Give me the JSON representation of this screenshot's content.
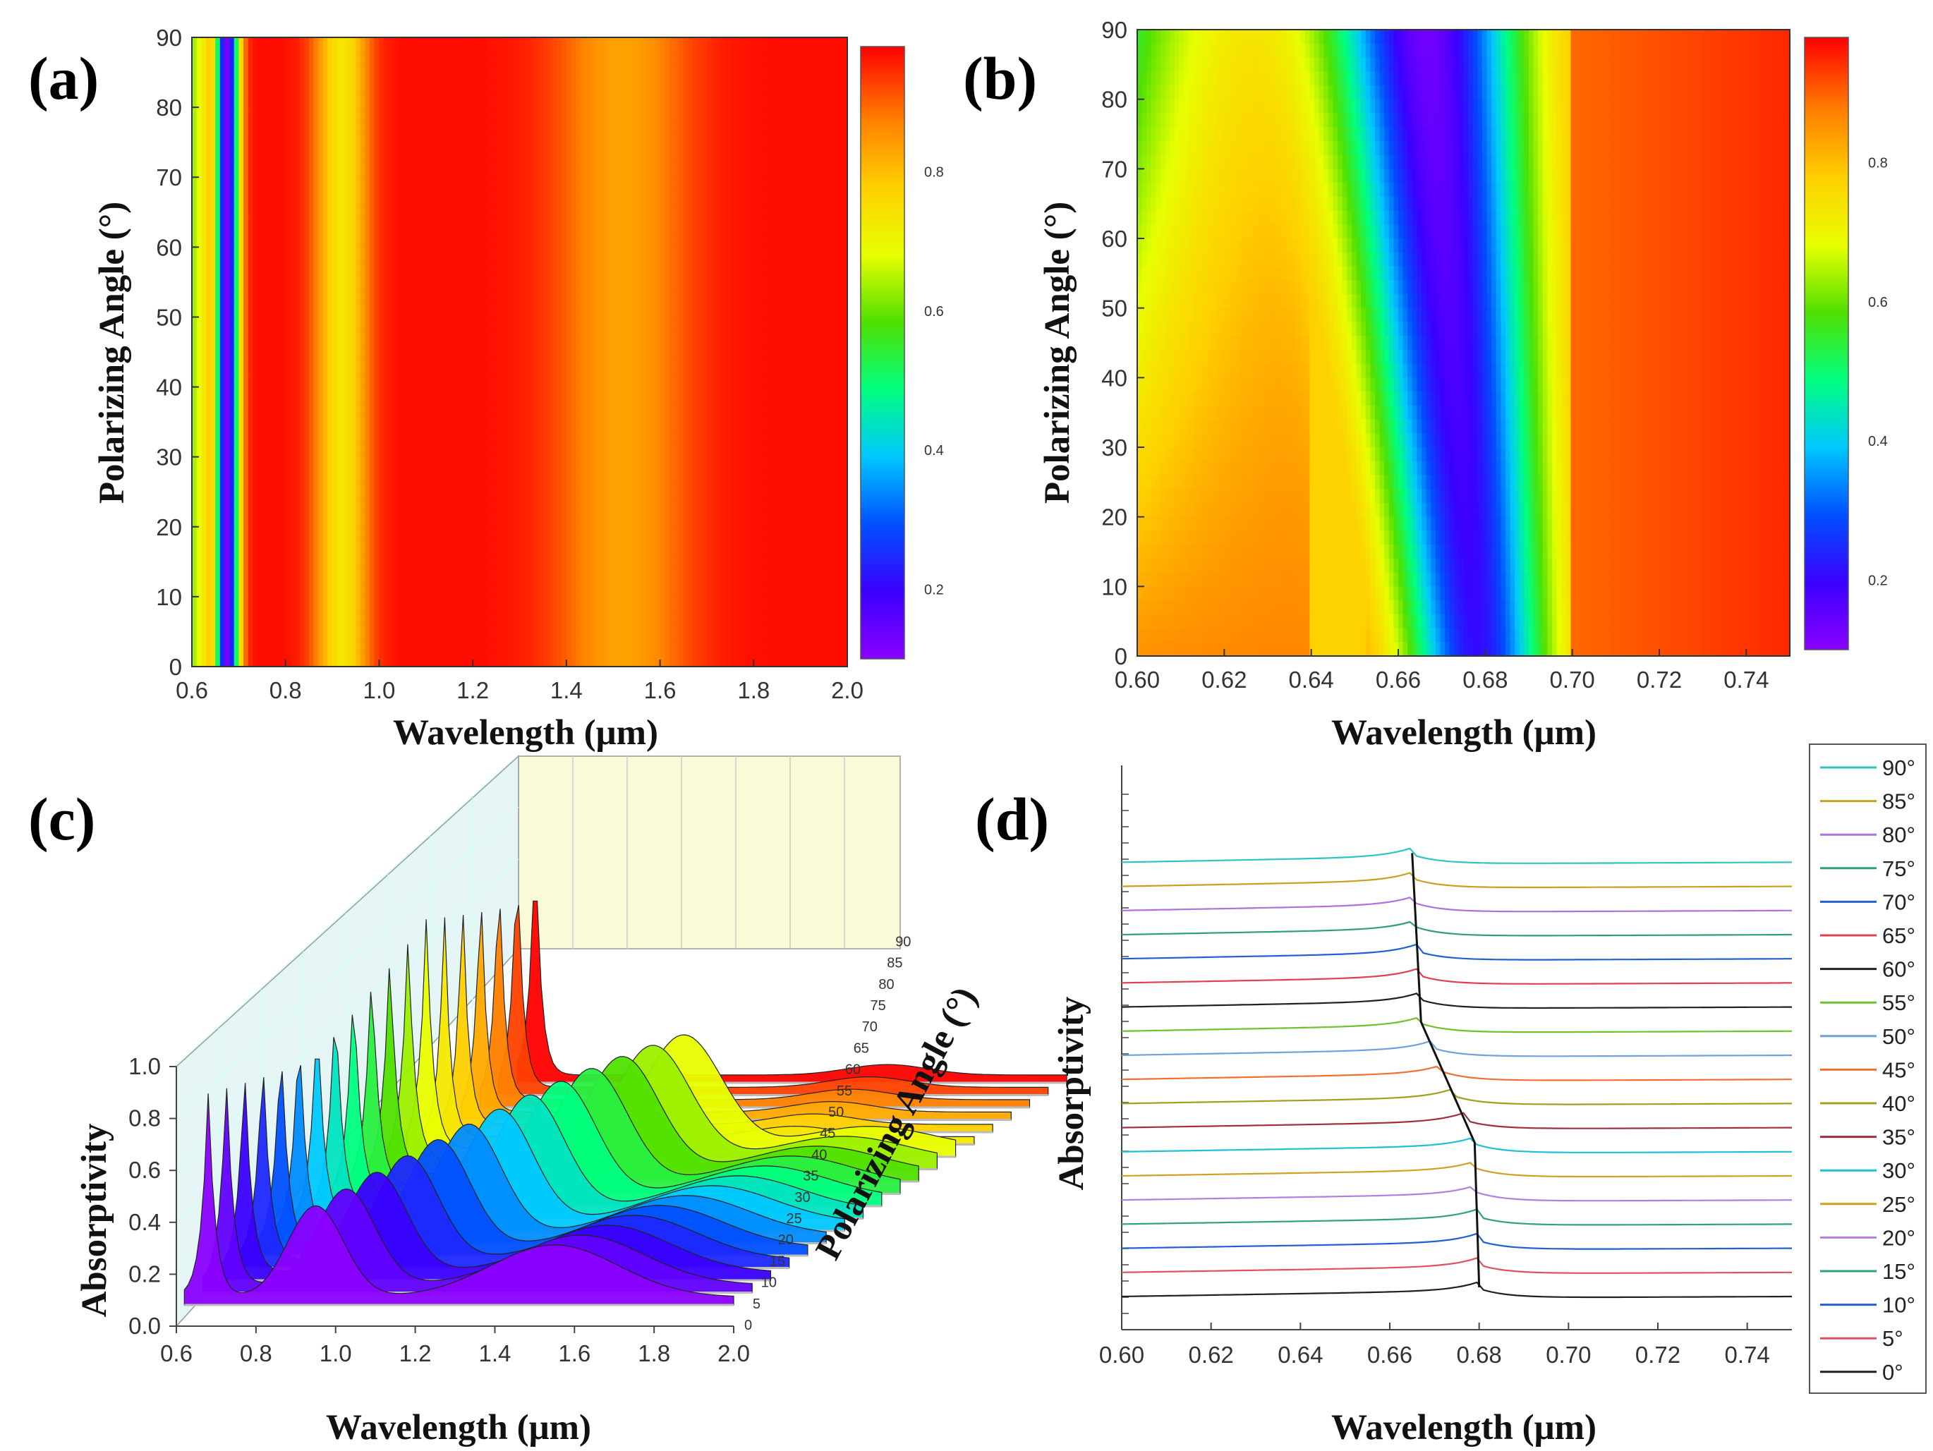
{
  "colormap": [
    "#8a00ff",
    "#3a00ff",
    "#0050ff",
    "#00c8ff",
    "#00ff80",
    "#50e000",
    "#e8ff00",
    "#ffd000",
    "#ff8000",
    "#ff0000"
  ],
  "chart_data": [
    {
      "panel": "(a)",
      "type": "heatmap",
      "xlabel": "Wavelength (μm)",
      "ylabel": "Polarizing Angle (°)",
      "xlim": [
        0.6,
        2.0
      ],
      "ylim": [
        0,
        90
      ],
      "xticks": [
        "0.6",
        "0.8",
        "1.0",
        "1.2",
        "1.4",
        "1.6",
        "1.8",
        "2.0"
      ],
      "yticks": [
        "0",
        "10",
        "20",
        "30",
        "40",
        "50",
        "60",
        "70",
        "80",
        "90"
      ],
      "colorbar_ticks": [
        "0.2",
        "0.4",
        "0.6",
        "0.8"
      ],
      "colorbar_range": [
        0.1,
        0.98
      ],
      "features": [
        {
          "type": "dip",
          "center_um": 0.675,
          "width_um": 0.018,
          "min_value": 0.12,
          "slope_um_per_deg": 0.0
        },
        {
          "type": "dip",
          "center_um": 0.92,
          "width_um": 0.04,
          "min_value": 0.74
        },
        {
          "type": "dip",
          "center_um": 1.52,
          "width_um": 0.1,
          "min_value": 0.84
        }
      ],
      "background_value": 0.97
    },
    {
      "panel": "(b)",
      "type": "heatmap",
      "xlabel": "Wavelength (μm)",
      "ylabel": "Polarizing Angle (°)",
      "xlim": [
        0.6,
        0.75
      ],
      "ylim": [
        0,
        90
      ],
      "xticks": [
        "0.60",
        "0.62",
        "0.64",
        "0.66",
        "0.68",
        "0.70",
        "0.72",
        "0.74"
      ],
      "yticks": [
        "0",
        "10",
        "20",
        "30",
        "40",
        "50",
        "60",
        "70",
        "80",
        "90"
      ],
      "colorbar_ticks": [
        "0.2",
        "0.4",
        "0.6",
        "0.8"
      ],
      "colorbar_range": [
        0.1,
        0.98
      ],
      "features": [
        {
          "type": "dip",
          "center_um_at_0deg": 0.678,
          "center_um_at_90deg": 0.666,
          "width_um": 0.012,
          "min_value": 0.1
        },
        {
          "type": "dip_left_edge",
          "value_at_0deg": 0.86,
          "value_at_90deg": 0.55
        }
      ]
    },
    {
      "panel": "(c)",
      "type": "line",
      "style": "3d-waterfall",
      "xlabel": "Wavelength (μm)",
      "ylabel": "Absorptivity",
      "zlabel": "Polarizing Angle (°)",
      "xlim": [
        0.6,
        2.0
      ],
      "ylim": [
        0.0,
        1.0
      ],
      "xticks": [
        "0.6",
        "0.8",
        "1.0",
        "1.2",
        "1.4",
        "1.6",
        "1.8",
        "2.0"
      ],
      "yticks": [
        "0.0",
        "0.2",
        "0.4",
        "0.6",
        "0.8",
        "1.0"
      ],
      "zticks": [
        "0",
        "5",
        "10",
        "15",
        "20",
        "25",
        "30",
        "35",
        "40",
        "45",
        "50",
        "55",
        "60",
        "65",
        "70",
        "75",
        "80",
        "85",
        "90"
      ],
      "series_note": "19 spectra, one per polarizing angle 0–90° in 5° steps; sharp peak near 0.67 μm and broad peaks shifting with angle"
    },
    {
      "panel": "(d)",
      "type": "line",
      "style": "stacked-offset",
      "xlabel": "Wavelength (μm)",
      "ylabel": "Absorptivity",
      "xlim": [
        0.6,
        0.75
      ],
      "xticks": [
        "0.60",
        "0.62",
        "0.64",
        "0.66",
        "0.68",
        "0.70",
        "0.72",
        "0.74"
      ],
      "peak_wavelength_um": {
        "0": 0.68,
        "30": 0.679,
        "55": 0.667,
        "90": 0.665
      },
      "series": [
        {
          "name": "90°",
          "color": "#2ec4c4"
        },
        {
          "name": "85°",
          "color": "#c8a020"
        },
        {
          "name": "80°",
          "color": "#b070e0"
        },
        {
          "name": "75°",
          "color": "#30a070"
        },
        {
          "name": "70°",
          "color": "#2060d0"
        },
        {
          "name": "65°",
          "color": "#e04050"
        },
        {
          "name": "60°",
          "color": "#202020"
        },
        {
          "name": "55°",
          "color": "#70c030"
        },
        {
          "name": "50°",
          "color": "#70a0e0"
        },
        {
          "name": "45°",
          "color": "#f07030"
        },
        {
          "name": "40°",
          "color": "#a0a020"
        },
        {
          "name": "35°",
          "color": "#a03040"
        },
        {
          "name": "30°",
          "color": "#20c0d0"
        },
        {
          "name": "25°",
          "color": "#d0a020"
        },
        {
          "name": "20°",
          "color": "#b080e0"
        },
        {
          "name": "15°",
          "color": "#30a080"
        },
        {
          "name": "10°",
          "color": "#2060d0"
        },
        {
          "name": "5°",
          "color": "#e05060"
        },
        {
          "name": "0°",
          "color": "#202020"
        }
      ]
    }
  ]
}
